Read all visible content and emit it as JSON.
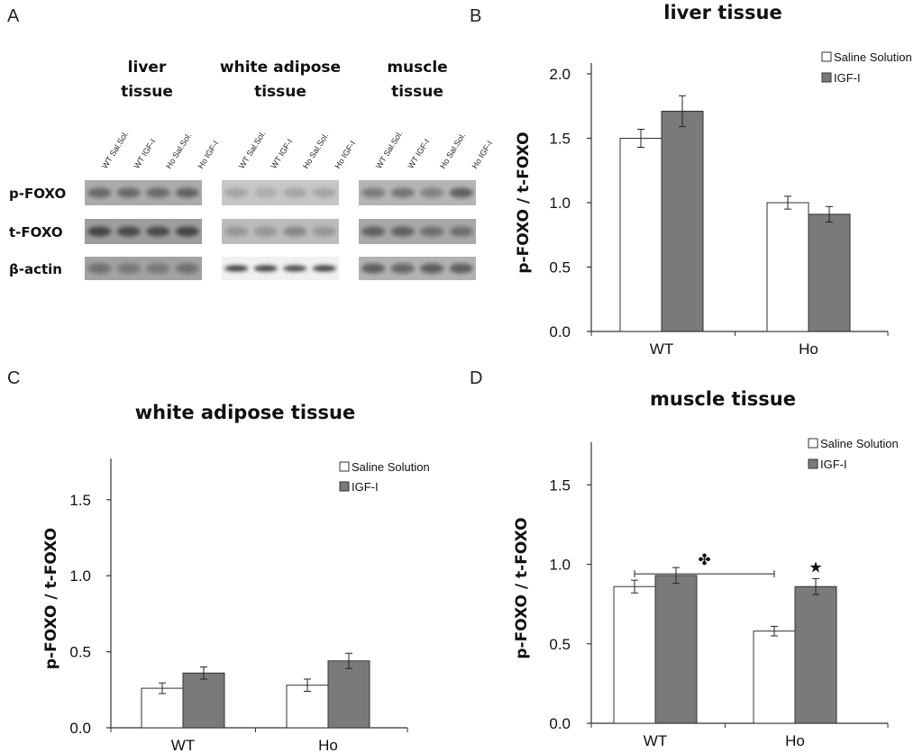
{
  "panel_letters": {
    "a": "A",
    "b": "B",
    "c": "C",
    "d": "D"
  },
  "colors": {
    "saline": "#ffffff",
    "igf": "#7a7a7a",
    "axis": "#333333"
  },
  "blot": {
    "tissues": [
      "liver\ntissue",
      "white adipose\ntissue",
      "muscle\ntissue"
    ],
    "lanes": [
      "WT Sal.Sol.",
      "WT IGF-I",
      "Ho Sal.Sol.",
      "Ho IGF-I"
    ],
    "rows": [
      "p-FOXO",
      "t-FOXO",
      "β-actin"
    ]
  },
  "chart_data": [
    {
      "panel": "B",
      "type": "bar",
      "title": "liver tissue",
      "ylabel": "p-FOXO / t-FOXO",
      "xlabel": "",
      "categories": [
        "WT",
        "Ho"
      ],
      "ylim": [
        0,
        2.0
      ],
      "yticks": [
        "0.0",
        "0.5",
        "1.0",
        "1.5",
        "2.0"
      ],
      "series": [
        {
          "name": "Saline Solution",
          "values": [
            1.5,
            1.0
          ],
          "errors": [
            0.07,
            0.05
          ]
        },
        {
          "name": "IGF-I",
          "values": [
            1.71,
            0.91
          ],
          "errors": [
            0.12,
            0.06
          ]
        }
      ],
      "annotations": [],
      "legend": "top-right"
    },
    {
      "panel": "C",
      "type": "bar",
      "title": "white adipose tissue",
      "ylabel": "p-FOXO / t-FOXO",
      "xlabel": "",
      "categories": [
        "WT",
        "Ho"
      ],
      "ylim": [
        0,
        1.7
      ],
      "yticks": [
        "0.0",
        "0.5",
        "1.0",
        "1.5"
      ],
      "series": [
        {
          "name": "Saline Solution",
          "values": [
            0.26,
            0.28
          ],
          "errors": [
            0.035,
            0.04
          ]
        },
        {
          "name": "IGF-I",
          "values": [
            0.36,
            0.44
          ],
          "errors": [
            0.04,
            0.05
          ]
        }
      ],
      "annotations": [],
      "legend": "top-right"
    },
    {
      "panel": "D",
      "type": "bar",
      "title": "muscle tissue",
      "ylabel": "p-FOXO / t-FOXO",
      "xlabel": "",
      "categories": [
        "WT",
        "Ho"
      ],
      "ylim": [
        0,
        1.7
      ],
      "yticks": [
        "0.0",
        "0.5",
        "1.0",
        "1.5"
      ],
      "series": [
        {
          "name": "Saline Solution",
          "values": [
            0.86,
            0.58
          ],
          "errors": [
            0.04,
            0.03
          ]
        },
        {
          "name": "IGF-I",
          "values": [
            0.93,
            0.86
          ],
          "errors": [
            0.05,
            0.05
          ]
        }
      ],
      "annotations": [
        {
          "type": "bracket",
          "between": [
            "WT Saline Solution",
            "Ho Saline Solution"
          ],
          "symbol": "✤"
        },
        {
          "type": "star",
          "on": "Ho IGF-I",
          "symbol": "★"
        }
      ],
      "legend": "top-right"
    }
  ]
}
